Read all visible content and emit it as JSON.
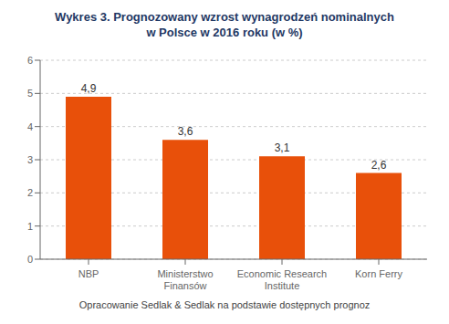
{
  "chart_data": {
    "type": "bar",
    "title": "Wykres 3. Prognozowany wzrost wynagrodzeń nominalnych\nw Polsce w 2016 roku (w %)",
    "categories": [
      "NBP",
      "Ministerstwo\nFinansów",
      "Economic Research\nInstitute",
      "Korn Ferry"
    ],
    "values": [
      4.9,
      3.6,
      3.1,
      2.6
    ],
    "value_labels": [
      "4,9",
      "3,6",
      "3,1",
      "2,6"
    ],
    "data_labels": true,
    "color": "#E8500A",
    "ylim": [
      0,
      6
    ],
    "yticks": [
      0,
      1,
      2,
      3,
      4,
      5,
      6
    ],
    "grid": true,
    "annotations": [
      "Opracowanie Sedlak & Sedlak na podstawie dostępnych prognoz"
    ]
  }
}
